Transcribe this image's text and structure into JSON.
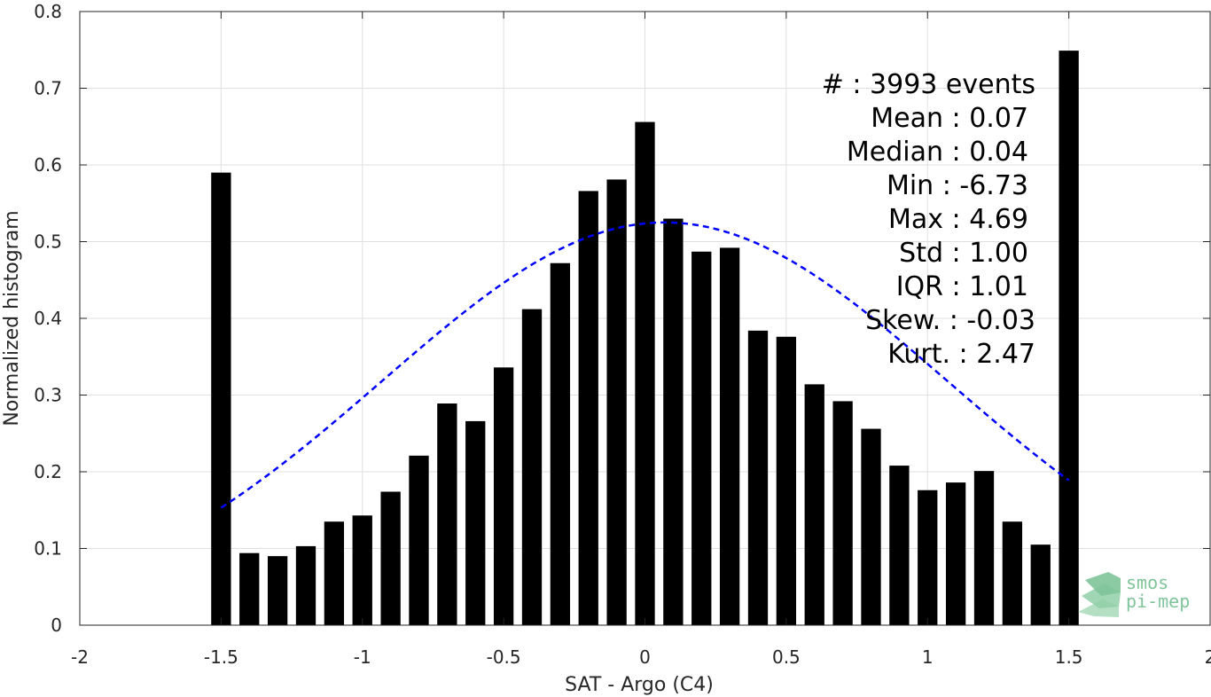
{
  "chart_data": {
    "type": "bar",
    "xlabel": "SAT - Argo (C4)",
    "ylabel": "Normalized histogram",
    "xlim": [
      -2,
      2
    ],
    "ylim": [
      0,
      0.8
    ],
    "xticks": [
      -2,
      -1.5,
      -1,
      -0.5,
      0,
      0.5,
      1,
      1.5,
      2
    ],
    "xtick_labels": [
      "-2",
      "-1.5",
      "-1",
      "-0.5",
      "0",
      "0.5",
      "1",
      "1.5",
      "2"
    ],
    "yticks": [
      0,
      0.1,
      0.2,
      0.3,
      0.4,
      0.5,
      0.6,
      0.7,
      0.8
    ],
    "ytick_labels": [
      "0",
      "0.1",
      "0.2",
      "0.3",
      "0.4",
      "0.5",
      "0.6",
      "0.7",
      "0.8"
    ],
    "grid": true,
    "bar_color": "#000000",
    "bins": [
      -1.5,
      -1.4,
      -1.3,
      -1.2,
      -1.1,
      -1.0,
      -0.9,
      -0.8,
      -0.7,
      -0.6,
      -0.5,
      -0.4,
      -0.3,
      -0.2,
      -0.1,
      0.0,
      0.1,
      0.2,
      0.3,
      0.4,
      0.5,
      0.6,
      0.7,
      0.8,
      0.9,
      1.0,
      1.1,
      1.2,
      1.3,
      1.4,
      1.5
    ],
    "values": [
      0.59,
      0.094,
      0.09,
      0.103,
      0.135,
      0.143,
      0.174,
      0.221,
      0.289,
      0.266,
      0.336,
      0.412,
      0.472,
      0.566,
      0.581,
      0.656,
      0.53,
      0.487,
      0.492,
      0.384,
      0.376,
      0.314,
      0.292,
      0.256,
      0.208,
      0.176,
      0.186,
      0.201,
      0.135,
      0.105,
      0.749
    ],
    "fit_curve": {
      "type": "gaussian",
      "style": "dashed",
      "color": "#0000ff",
      "mean": 0.07,
      "std": 1.0,
      "peak": 0.525,
      "x_range": [
        -1.5,
        1.5
      ]
    },
    "stats": [
      {
        "label": "#  : 3993 events"
      },
      {
        "label": "Mean : 0.07"
      },
      {
        "label": "Median : 0.04"
      },
      {
        "label": "Min : -6.73"
      },
      {
        "label": "Max : 4.69"
      },
      {
        "label": "Std : 1.00"
      },
      {
        "label": "IQR : 1.01"
      },
      {
        "label": "Skew. : -0.03"
      },
      {
        "label": "Kurt. : 2.47"
      }
    ]
  },
  "logo": {
    "line1": "smos",
    "line2": "pi-mep",
    "color": "#7fc49a"
  }
}
